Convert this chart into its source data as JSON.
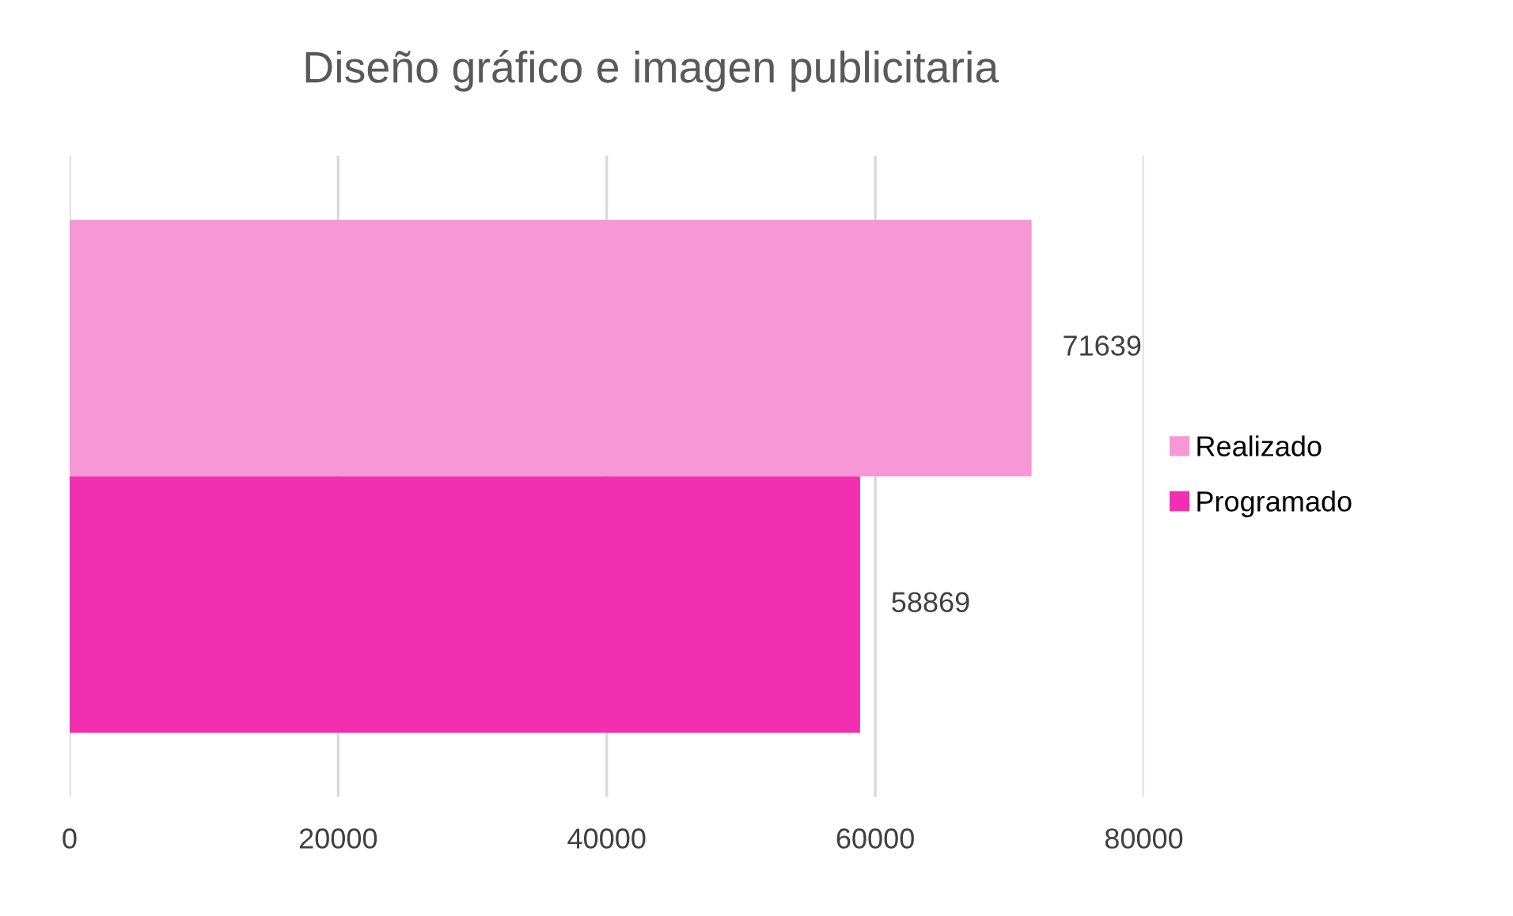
{
  "chart_data": {
    "type": "bar",
    "orientation": "horizontal",
    "title": "Diseño gráfico e imagen publicitaria",
    "categories": [
      null
    ],
    "series": [
      {
        "name": "Realizado",
        "color": "#f797d6",
        "values": [
          71639
        ]
      },
      {
        "name": "Programado",
        "color": "#f22fb0",
        "values": [
          58869
        ]
      }
    ],
    "xlim": [
      0,
      80000
    ],
    "xticks": [
      0,
      20000,
      40000,
      60000,
      80000
    ],
    "grid": "x",
    "legend": "right",
    "data_labels": true
  }
}
